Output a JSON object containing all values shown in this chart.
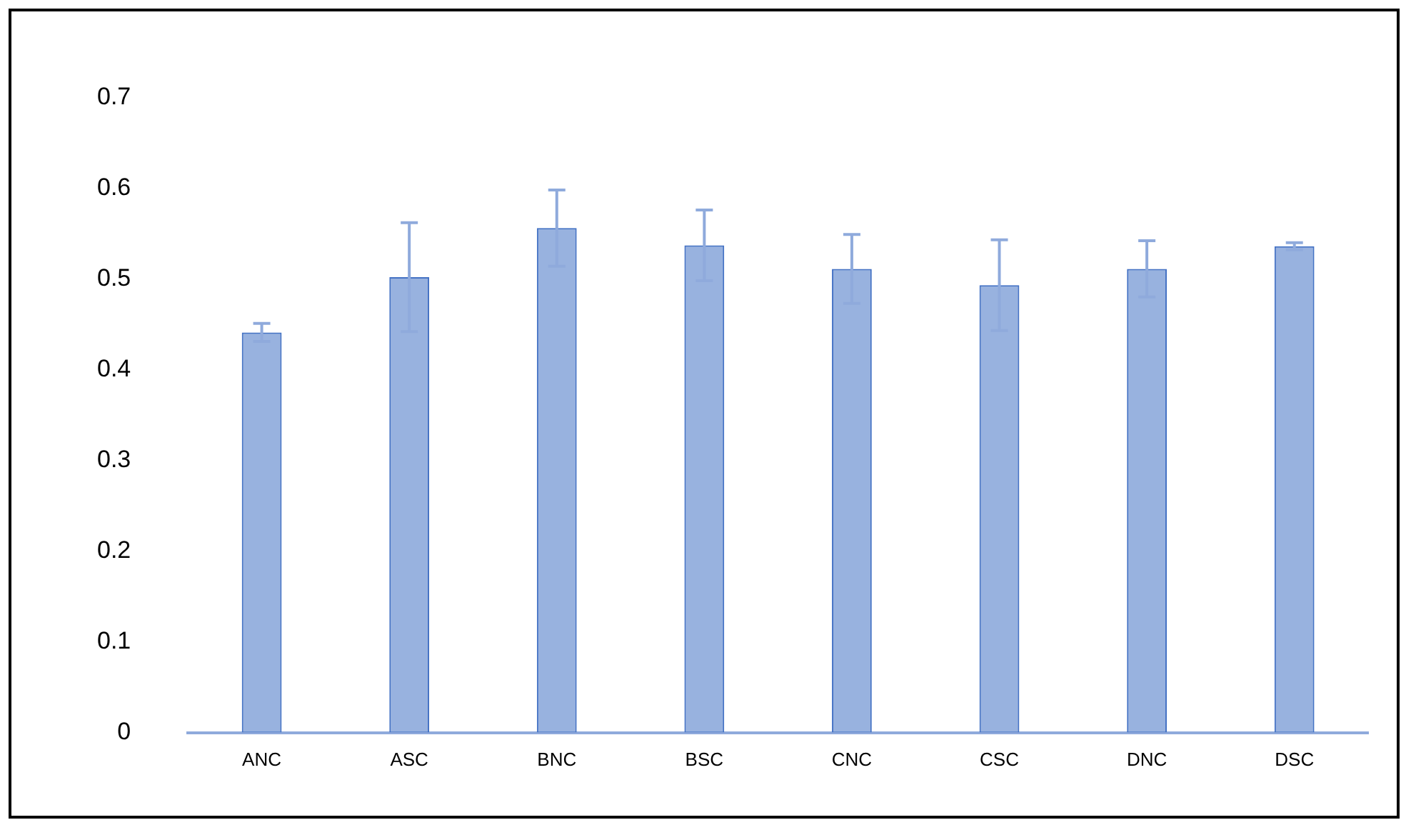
{
  "chart_data": {
    "type": "bar",
    "categories": [
      "ANC",
      "ASC",
      "BNC",
      "BSC",
      "CNC",
      "CSC",
      "DNC",
      "DSC"
    ],
    "values": [
      0.441,
      0.502,
      0.556,
      0.537,
      0.511,
      0.493,
      0.511,
      0.536
    ],
    "errors": [
      0.01,
      0.06,
      0.042,
      0.039,
      0.038,
      0.05,
      0.031,
      0.004
    ],
    "color": "#4472c4",
    "ylim": [
      0,
      0.7
    ],
    "yticks": [
      0,
      0.1,
      0.2,
      0.3,
      0.4,
      0.5,
      0.6,
      0.7
    ],
    "grid": false,
    "legend": false
  }
}
